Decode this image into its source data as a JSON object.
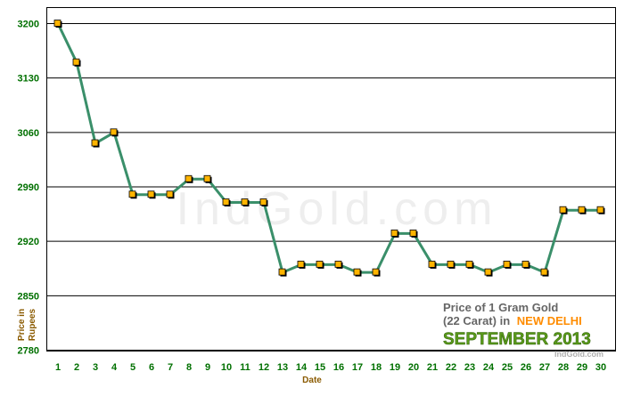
{
  "chart_data": {
    "type": "line",
    "title_lines": [
      "Price of 1 Gram Gold",
      "(22 Carat) in"
    ],
    "title_city": "NEW DELHI",
    "title_month": "SEPTEMBER 2013",
    "watermark": "IndGold.com",
    "credit": "IndGold.com",
    "xlabel": "Date",
    "ylabel_lines": [
      "Price in",
      "Rupees"
    ],
    "ylim": [
      2780,
      3200
    ],
    "yticks": [
      2780,
      2850,
      2920,
      2990,
      3060,
      3130,
      3200
    ],
    "x": [
      1,
      2,
      3,
      4,
      5,
      6,
      7,
      8,
      9,
      10,
      11,
      12,
      13,
      14,
      15,
      16,
      17,
      18,
      19,
      20,
      21,
      22,
      23,
      24,
      25,
      26,
      27,
      28,
      29,
      30
    ],
    "series": [
      {
        "values": [
          3200,
          3150,
          3046,
          3060,
          2980,
          2980,
          2980,
          3000,
          3000,
          2970,
          2970,
          2970,
          2880,
          2890,
          2890,
          2890,
          2880,
          2880,
          2930,
          2930,
          2890,
          2890,
          2890,
          2880,
          2890,
          2890,
          2880,
          2960,
          2960,
          2960
        ]
      }
    ],
    "grid": "horizontal",
    "colors": {
      "line": "#3a8f6a",
      "marker_fill": "#ffb400",
      "marker_edge": "#000000",
      "tick_labels": "#007000",
      "axis_title": "#8a5a00",
      "grid": "#000000",
      "city": "#ff8c00",
      "month": "#5a9a1a"
    }
  }
}
